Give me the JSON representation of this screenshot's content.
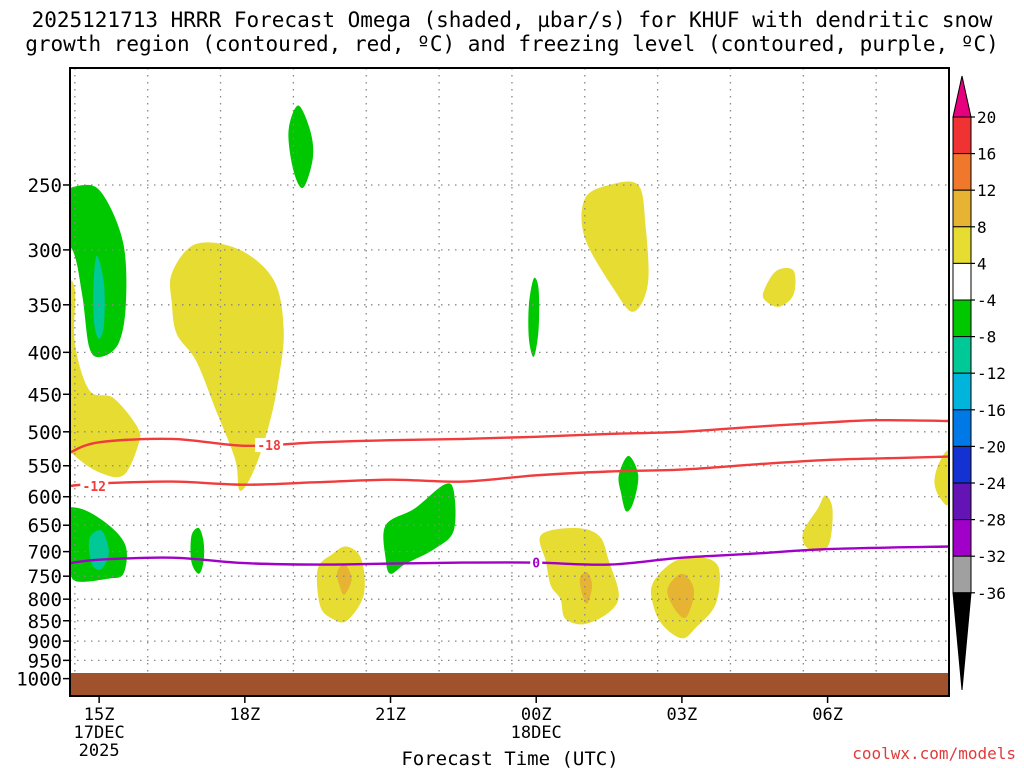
{
  "header": {
    "title_line1": "2025121713 HRRR Forecast Omega (shaded, µbar/s) for KHUF with dendritic snow",
    "title_line2": "growth region (contoured, red, ºC) and freezing level (contoured, purple, ºC)"
  },
  "footer": {
    "credit": "coolwx.com/models"
  },
  "chart_data": {
    "type": "heatmap",
    "title": "2025121713 HRRR Forecast Omega (shaded, µbar/s) for KHUF with dendritic snow growth region (contoured, red, ºC) and freezing level (contoured, purple, ºC)",
    "xlabel": "Forecast Time (UTC)",
    "ylabel": "",
    "x_range_hours": [
      -0.6,
      17.5
    ],
    "y_range_hpa": [
      1050,
      180
    ],
    "y_ticks": [
      250,
      300,
      350,
      400,
      450,
      500,
      550,
      600,
      650,
      700,
      750,
      800,
      850,
      900,
      950,
      1000
    ],
    "x_ticks": [
      {
        "hour": 0,
        "label": "15Z",
        "sub1": "17DEC",
        "sub2": "2025"
      },
      {
        "hour": 3,
        "label": "18Z",
        "sub1": "",
        "sub2": ""
      },
      {
        "hour": 6,
        "label": "21Z",
        "sub1": "",
        "sub2": ""
      },
      {
        "hour": 9,
        "label": "00Z",
        "sub1": "18DEC",
        "sub2": ""
      },
      {
        "hour": 12,
        "label": "03Z",
        "sub1": "",
        "sub2": ""
      },
      {
        "hour": 15,
        "label": "06Z",
        "sub1": "",
        "sub2": ""
      }
    ],
    "colorbar": {
      "levels": [
        20,
        16,
        12,
        8,
        4,
        -4,
        -8,
        -12,
        -16,
        -20,
        -24,
        -28,
        -32,
        -36
      ],
      "colors": [
        "#e6007e",
        "#f03232",
        "#f0782d",
        "#e6b432",
        "#e6dc32",
        "#ffffff",
        "#00c800",
        "#00c896",
        "#00b4dc",
        "#0078e6",
        "#1432d2",
        "#6414b4",
        "#a000c8",
        "#a0a0a0",
        "#000000"
      ]
    },
    "contours": [
      {
        "label": "-18",
        "color": "#f03c3c",
        "level_c": -18,
        "points": [
          [
            -0.6,
            530
          ],
          [
            0,
            515
          ],
          [
            1.5,
            510
          ],
          [
            3,
            520
          ],
          [
            4.5,
            515
          ],
          [
            6,
            512
          ],
          [
            7.5,
            510
          ],
          [
            9,
            507
          ],
          [
            10.5,
            503
          ],
          [
            12,
            500
          ],
          [
            13.5,
            493
          ],
          [
            15,
            487
          ],
          [
            16,
            484
          ],
          [
            17.5,
            485
          ]
        ],
        "label_at": [
          3.5,
          519
        ]
      },
      {
        "label": "-12",
        "color": "#f03c3c",
        "level_c": -12,
        "points": [
          [
            -0.6,
            582
          ],
          [
            0,
            578
          ],
          [
            1.5,
            575
          ],
          [
            3,
            580
          ],
          [
            4.5,
            576
          ],
          [
            6,
            572
          ],
          [
            7.5,
            575
          ],
          [
            9,
            565
          ],
          [
            10.5,
            559
          ],
          [
            12,
            556
          ],
          [
            13.5,
            548
          ],
          [
            15,
            541
          ],
          [
            16.5,
            538
          ],
          [
            17.5,
            536
          ]
        ],
        "label_at": [
          -0.1,
          582
        ]
      },
      {
        "label": "0",
        "color": "#a000c8",
        "level_c": 0,
        "points": [
          [
            -0.6,
            723
          ],
          [
            0,
            716
          ],
          [
            1.5,
            712
          ],
          [
            3,
            723
          ],
          [
            4.5,
            726
          ],
          [
            6,
            724
          ],
          [
            7.5,
            722
          ],
          [
            9,
            722
          ],
          [
            10.5,
            726
          ],
          [
            12,
            712
          ],
          [
            13.5,
            704
          ],
          [
            15,
            695
          ],
          [
            17.5,
            690
          ]
        ],
        "label_at": [
          9.0,
          722
        ]
      }
    ],
    "shaded_regions": [
      {
        "value": "4..8",
        "color": "#e6dc32",
        "points": [
          [
            -1.6,
            385
          ],
          [
            -1.4,
            345
          ],
          [
            -1.1,
            328
          ],
          [
            -0.7,
            325
          ],
          [
            -0.5,
            335
          ],
          [
            -0.5,
            390
          ],
          [
            -0.2,
            445
          ],
          [
            0.3,
            455
          ],
          [
            0.8,
            495
          ],
          [
            0.8,
            520
          ],
          [
            0.5,
            565
          ],
          [
            0,
            560
          ],
          [
            -0.5,
            535
          ],
          [
            -1.1,
            490
          ],
          [
            -1.6,
            440
          ],
          [
            -1.8,
            410
          ]
        ]
      },
      {
        "value": "8..12",
        "color": "#e6b432",
        "points": [
          [
            -1.35,
            380
          ],
          [
            -1.15,
            350
          ],
          [
            -0.9,
            365
          ],
          [
            -0.85,
            395
          ],
          [
            -1.0,
            430
          ],
          [
            -1.2,
            430
          ],
          [
            -1.4,
            410
          ]
        ]
      },
      {
        "value": "12..16",
        "color": "#f0782d",
        "points": [
          [
            -1.18,
            378
          ],
          [
            -1.08,
            362
          ],
          [
            -1.0,
            378
          ],
          [
            -1.03,
            398
          ],
          [
            -1.12,
            412
          ],
          [
            -1.2,
            398
          ]
        ]
      },
      {
        "value": "-4..-8",
        "color": "#00c800",
        "points": [
          [
            -0.95,
            260
          ],
          [
            -0.3,
            250
          ],
          [
            0.1,
            258
          ],
          [
            0.5,
            295
          ],
          [
            0.55,
            350
          ],
          [
            0.4,
            390
          ],
          [
            0.05,
            405
          ],
          [
            -0.2,
            395
          ],
          [
            -0.35,
            340
          ],
          [
            -0.55,
            300
          ],
          [
            -0.95,
            290
          ]
        ]
      },
      {
        "value": "-8..-12",
        "color": "#00c896",
        "points": [
          [
            -0.05,
            305
          ],
          [
            0.1,
            330
          ],
          [
            0.1,
            370
          ],
          [
            0,
            385
          ],
          [
            -0.1,
            370
          ],
          [
            -0.12,
            335
          ]
        ]
      },
      {
        "value": "4..8",
        "color": "#e6dc32",
        "points": [
          [
            1.5,
            320
          ],
          [
            2.0,
            295
          ],
          [
            2.9,
            300
          ],
          [
            3.6,
            327
          ],
          [
            3.8,
            375
          ],
          [
            3.7,
            430
          ],
          [
            3.5,
            490
          ],
          [
            3.2,
            555
          ],
          [
            2.9,
            590
          ],
          [
            2.8,
            540
          ],
          [
            2.4,
            470
          ],
          [
            2.0,
            410
          ],
          [
            1.6,
            380
          ],
          [
            1.5,
            350
          ]
        ]
      },
      {
        "value": "-4..-8",
        "color": "#00c800",
        "points": [
          [
            3.9,
            215
          ],
          [
            4.1,
            200
          ],
          [
            4.35,
            215
          ],
          [
            4.4,
            232
          ],
          [
            4.2,
            252
          ],
          [
            4.0,
            240
          ]
        ]
      },
      {
        "value": "4..8",
        "color": "#e6dc32",
        "points": [
          [
            10.0,
            260
          ],
          [
            10.5,
            250
          ],
          [
            11.1,
            250
          ],
          [
            11.25,
            280
          ],
          [
            11.3,
            330
          ],
          [
            11.0,
            357
          ],
          [
            10.6,
            335
          ],
          [
            10.0,
            290
          ]
        ]
      },
      {
        "value": "-4..-8",
        "color": "#00c800",
        "points": [
          [
            8.85,
            350
          ],
          [
            8.95,
            325
          ],
          [
            9.05,
            335
          ],
          [
            9.05,
            375
          ],
          [
            8.95,
            405
          ],
          [
            8.85,
            385
          ]
        ]
      },
      {
        "value": "4..8",
        "color": "#e6dc32",
        "points": [
          [
            13.7,
            335
          ],
          [
            13.95,
            318
          ],
          [
            14.3,
            318
          ],
          [
            14.3,
            340
          ],
          [
            14.0,
            352
          ],
          [
            13.7,
            345
          ]
        ]
      },
      {
        "value": "-4..-8",
        "color": "#00c800",
        "points": [
          [
            1.9,
            670
          ],
          [
            2.05,
            655
          ],
          [
            2.15,
            680
          ],
          [
            2.15,
            720
          ],
          [
            2.05,
            745
          ],
          [
            1.9,
            720
          ]
        ]
      },
      {
        "value": "-4..-8",
        "color": "#00c800",
        "points": [
          [
            -0.95,
            625
          ],
          [
            -0.4,
            620
          ],
          [
            0.2,
            650
          ],
          [
            0.55,
            690
          ],
          [
            0.5,
            745
          ],
          [
            0.2,
            755
          ],
          [
            -0.5,
            760
          ],
          [
            -0.6,
            720
          ],
          [
            -0.8,
            670
          ]
        ]
      },
      {
        "value": "-8..-12",
        "color": "#00c896",
        "points": [
          [
            -0.2,
            675
          ],
          [
            0.05,
            660
          ],
          [
            0.2,
            700
          ],
          [
            0.05,
            735
          ],
          [
            -0.15,
            725
          ]
        ]
      },
      {
        "value": "-4..-8",
        "color": "#00c800",
        "points": [
          [
            -1.1,
            838
          ],
          [
            -0.95,
            810
          ],
          [
            -0.85,
            832
          ],
          [
            -0.95,
            880
          ],
          [
            -1.1,
            870
          ]
        ]
      },
      {
        "value": "4..8",
        "color": "#e6dc32",
        "points": [
          [
            4.5,
            735
          ],
          [
            4.8,
            705
          ],
          [
            5.1,
            690
          ],
          [
            5.4,
            715
          ],
          [
            5.45,
            790
          ],
          [
            5.1,
            850
          ],
          [
            4.8,
            845
          ],
          [
            4.55,
            815
          ]
        ]
      },
      {
        "value": "8..12",
        "color": "#e6b432",
        "points": [
          [
            4.9,
            742
          ],
          [
            5.05,
            725
          ],
          [
            5.2,
            755
          ],
          [
            5.05,
            790
          ],
          [
            4.95,
            770
          ]
        ]
      },
      {
        "value": "-4..-8",
        "color": "#00c800",
        "points": [
          [
            5.9,
            650
          ],
          [
            6.5,
            620
          ],
          [
            7.1,
            580
          ],
          [
            7.3,
            590
          ],
          [
            7.3,
            660
          ],
          [
            6.9,
            695
          ],
          [
            6.3,
            725
          ],
          [
            6.0,
            745
          ],
          [
            5.9,
            715
          ]
        ]
      },
      {
        "value": "4..8",
        "color": "#e6dc32",
        "points": [
          [
            9.1,
            668
          ],
          [
            9.8,
            655
          ],
          [
            10.3,
            670
          ],
          [
            10.5,
            720
          ],
          [
            10.7,
            790
          ],
          [
            10.5,
            830
          ],
          [
            10.0,
            858
          ],
          [
            9.6,
            845
          ],
          [
            9.5,
            800
          ],
          [
            9.3,
            770
          ],
          [
            9.2,
            720
          ]
        ]
      },
      {
        "value": "8..12",
        "color": "#e6b432",
        "points": [
          [
            9.9,
            755
          ],
          [
            10.05,
            742
          ],
          [
            10.15,
            770
          ],
          [
            10.05,
            810
          ],
          [
            9.95,
            790
          ]
        ]
      },
      {
        "value": "-4..-8",
        "color": "#00c800",
        "points": [
          [
            10.7,
            565
          ],
          [
            10.9,
            535
          ],
          [
            11.1,
            565
          ],
          [
            11.0,
            610
          ],
          [
            10.85,
            625
          ],
          [
            10.75,
            595
          ]
        ]
      },
      {
        "value": "4..8",
        "color": "#e6dc32",
        "points": [
          [
            11.4,
            765
          ],
          [
            11.8,
            722
          ],
          [
            12.3,
            710
          ],
          [
            12.75,
            730
          ],
          [
            12.7,
            810
          ],
          [
            12.3,
            865
          ],
          [
            12.0,
            893
          ],
          [
            11.6,
            860
          ],
          [
            11.4,
            810
          ]
        ]
      },
      {
        "value": "8..12",
        "color": "#e6b432",
        "points": [
          [
            11.7,
            780
          ],
          [
            12.0,
            745
          ],
          [
            12.25,
            780
          ],
          [
            12.1,
            840
          ],
          [
            11.9,
            830
          ]
        ]
      },
      {
        "value": "4..8",
        "color": "#e6dc32",
        "points": [
          [
            14.5,
            662
          ],
          [
            14.8,
            620
          ],
          [
            14.95,
            598
          ],
          [
            15.1,
            620
          ],
          [
            15.05,
            680
          ],
          [
            14.85,
            700
          ],
          [
            14.55,
            690
          ]
        ]
      },
      {
        "value": "4..8",
        "color": "#e6dc32",
        "points": [
          [
            17.2,
            575
          ],
          [
            17.3,
            545
          ],
          [
            17.5,
            530
          ],
          [
            17.5,
            610
          ],
          [
            17.3,
            600
          ]
        ]
      }
    ]
  }
}
